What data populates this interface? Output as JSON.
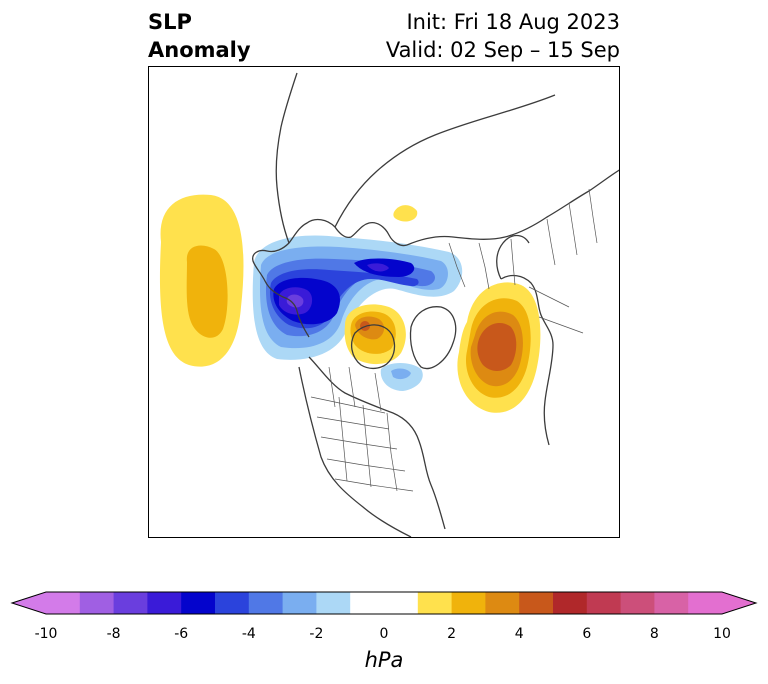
{
  "title": {
    "left_line1": "SLP",
    "left_line2": "Anomaly",
    "right_line1": "Init: Fri 18 Aug 2023",
    "right_line2": "Valid: 02 Sep – 15 Sep"
  },
  "colorbar": {
    "unit": "hPa",
    "ticks": [
      "-10",
      "-8",
      "-6",
      "-4",
      "-2",
      "0",
      "2",
      "4",
      "6",
      "8",
      "10"
    ],
    "extend": "both",
    "bins": [
      {
        "from": -10,
        "to": -9,
        "color": "#d37be9"
      },
      {
        "from": -9,
        "to": -8,
        "color": "#a05fe3"
      },
      {
        "from": -8,
        "to": -7,
        "color": "#6a3ede"
      },
      {
        "from": -7,
        "to": -6,
        "color": "#3a1bd8"
      },
      {
        "from": -6,
        "to": -5,
        "color": "#0404cc"
      },
      {
        "from": -5,
        "to": -4,
        "color": "#2b43dc"
      },
      {
        "from": -4,
        "to": -3,
        "color": "#5078e6"
      },
      {
        "from": -3,
        "to": -2,
        "color": "#7aaef0"
      },
      {
        "from": -2,
        "to": -1,
        "color": "#acd8f6"
      },
      {
        "from": -1,
        "to": 1,
        "color": "#ffffff"
      },
      {
        "from": 1,
        "to": 2,
        "color": "#ffe14d"
      },
      {
        "from": 2,
        "to": 3,
        "color": "#f0b30c"
      },
      {
        "from": 3,
        "to": 4,
        "color": "#dd8a12"
      },
      {
        "from": 4,
        "to": 5,
        "color": "#c8581b"
      },
      {
        "from": 5,
        "to": 6,
        "color": "#b0282a"
      },
      {
        "from": 6,
        "to": 7,
        "color": "#c03a52"
      },
      {
        "from": 7,
        "to": 8,
        "color": "#cc4f7a"
      },
      {
        "from": 8,
        "to": 9,
        "color": "#d862a6"
      },
      {
        "from": 9,
        "to": 10,
        "color": "#e36fd0"
      }
    ],
    "under_color": "#d37be9",
    "over_color": "#e36fd0"
  },
  "map": {
    "projection": "north-polar-stereographic",
    "variable": "sea-level-pressure-anomaly",
    "features": [
      {
        "label": "North Pacific high anomaly",
        "peak": 2.5
      },
      {
        "label": "Canada / Arctic low anomaly",
        "peak": -7.5
      },
      {
        "label": "Hudson Bay high anomaly",
        "peak": 4.5
      },
      {
        "label": "North Atlantic high anomaly",
        "peak": 5.2
      },
      {
        "label": "Siberia small high anomaly",
        "peak": 1.5
      },
      {
        "label": "Labrador small low anomaly",
        "peak": -2.5
      }
    ]
  }
}
